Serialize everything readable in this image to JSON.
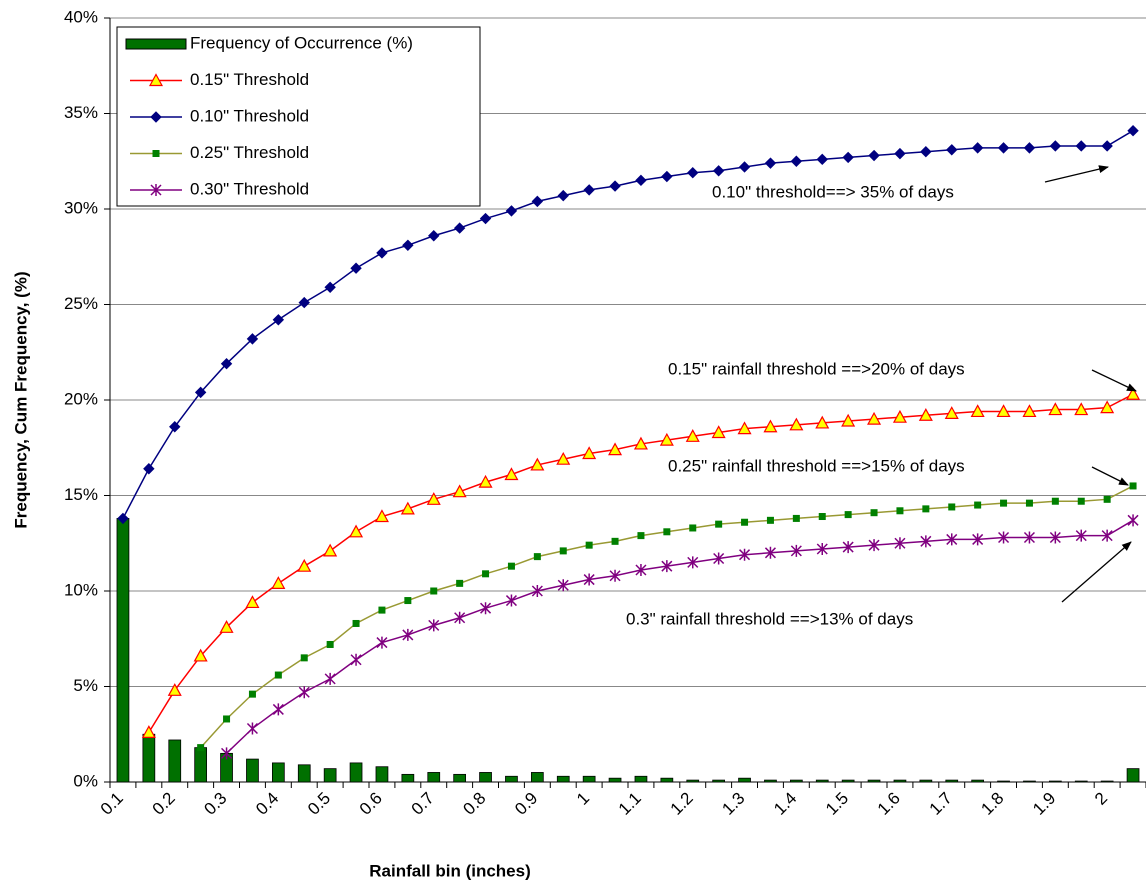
{
  "chart_data": {
    "type": "bar",
    "x_label": "Rainfall bin (inches)",
    "y_label": "Frequency, Cum Frequency, (%)",
    "categories": [
      "0.1",
      null,
      "0.2",
      null,
      "0.3",
      null,
      "0.4",
      null,
      "0.5",
      null,
      "0.6",
      null,
      "0.7",
      null,
      "0.8",
      null,
      "0.9",
      null,
      "1",
      null,
      "1.1",
      null,
      "1.2",
      null,
      "1.3",
      null,
      "1.4",
      null,
      "1.5",
      null,
      "1.6",
      null,
      "1.7",
      null,
      "1.8",
      null,
      "1.9",
      null,
      "2",
      null
    ],
    "ylim": [
      0,
      40
    ],
    "yticks": [
      {
        "value": 0,
        "label": "0%"
      },
      {
        "value": 5,
        "label": "5%"
      },
      {
        "value": 10,
        "label": "10%"
      },
      {
        "value": 15,
        "label": "15%"
      },
      {
        "value": 20,
        "label": "20%"
      },
      {
        "value": 25,
        "label": "25%"
      },
      {
        "value": 30,
        "label": "30%"
      },
      {
        "value": 35,
        "label": "35%"
      },
      {
        "value": 40,
        "label": "40%"
      }
    ],
    "grid": true,
    "legend": "upper left",
    "series": [
      {
        "name": "Frequency of Occurrence (%)",
        "type": "bar",
        "color": "#007000",
        "values": [
          13.8,
          2.5,
          2.2,
          1.8,
          1.5,
          1.2,
          1.0,
          0.9,
          0.7,
          1.0,
          0.8,
          0.4,
          0.5,
          0.4,
          0.5,
          0.3,
          0.5,
          0.3,
          0.3,
          0.2,
          0.3,
          0.2,
          0.1,
          0.1,
          0.2,
          0.1,
          0.1,
          0.1,
          0.1,
          0.1,
          0.1,
          0.1,
          0.1,
          0.1,
          0.05,
          0.05,
          0.05,
          0.05,
          0.05,
          0.7
        ]
      },
      {
        "name": "0.15\" Threshold",
        "type": "line",
        "color": "#ff0000",
        "marker": "triangle",
        "marker_color": "#ffff00",
        "values": [
          null,
          2.6,
          4.8,
          6.6,
          8.1,
          9.4,
          10.4,
          11.3,
          12.1,
          13.1,
          13.9,
          14.3,
          14.8,
          15.2,
          15.7,
          16.1,
          16.6,
          16.9,
          17.2,
          17.4,
          17.7,
          17.9,
          18.1,
          18.3,
          18.5,
          18.6,
          18.7,
          18.8,
          18.9,
          19.0,
          19.1,
          19.2,
          19.3,
          19.4,
          19.4,
          19.4,
          19.5,
          19.5,
          19.6,
          20.3
        ]
      },
      {
        "name": "0.10\" Threshold",
        "type": "line",
        "color": "#000080",
        "marker": "diamond",
        "marker_color": "#000080",
        "values": [
          13.8,
          16.4,
          18.6,
          20.4,
          21.9,
          23.2,
          24.2,
          25.1,
          25.9,
          26.9,
          27.7,
          28.1,
          28.6,
          29.0,
          29.5,
          29.9,
          30.4,
          30.7,
          31.0,
          31.2,
          31.5,
          31.7,
          31.9,
          32.0,
          32.2,
          32.4,
          32.5,
          32.6,
          32.7,
          32.8,
          32.9,
          33.0,
          33.1,
          33.2,
          33.2,
          33.2,
          33.3,
          33.3,
          33.3,
          34.1
        ]
      },
      {
        "name": "0.25\" Threshold",
        "type": "line",
        "color": "#999933",
        "marker": "square",
        "marker_color": "#008000",
        "values": [
          null,
          null,
          null,
          1.8,
          3.3,
          4.6,
          5.6,
          6.5,
          7.2,
          8.3,
          9.0,
          9.5,
          10.0,
          10.4,
          10.9,
          11.3,
          11.8,
          12.1,
          12.4,
          12.6,
          12.9,
          13.1,
          13.3,
          13.5,
          13.6,
          13.7,
          13.8,
          13.9,
          14.0,
          14.1,
          14.2,
          14.3,
          14.4,
          14.5,
          14.6,
          14.6,
          14.7,
          14.7,
          14.8,
          15.5
        ]
      },
      {
        "name": "0.30\" Threshold",
        "type": "line",
        "color": "#800080",
        "marker": "asterisk",
        "marker_color": "#800080",
        "values": [
          null,
          null,
          null,
          null,
          1.5,
          2.8,
          3.8,
          4.7,
          5.4,
          6.4,
          7.3,
          7.7,
          8.2,
          8.6,
          9.1,
          9.5,
          10.0,
          10.3,
          10.6,
          10.8,
          11.1,
          11.3,
          11.5,
          11.7,
          11.9,
          12.0,
          12.1,
          12.2,
          12.3,
          12.4,
          12.5,
          12.6,
          12.7,
          12.7,
          12.8,
          12.8,
          12.8,
          12.9,
          12.9,
          13.7
        ]
      }
    ],
    "annotations": [
      "0.10\" threshold==> 35% of days",
      "0.15\" rainfall threshold ==>20% of days",
      "0.25\" rainfall threshold ==>15% of days",
      "0.3\" rainfall threshold ==>13% of days"
    ]
  }
}
